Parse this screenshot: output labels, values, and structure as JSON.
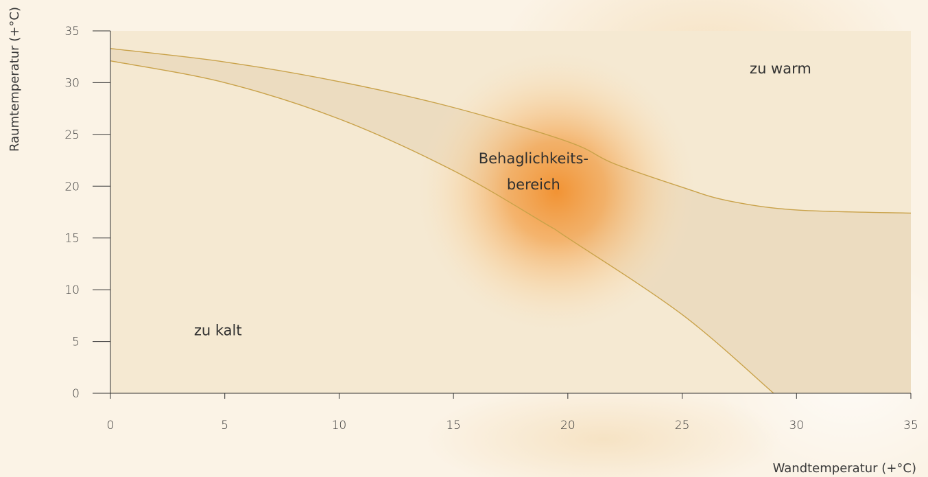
{
  "chart_data": {
    "type": "area",
    "xlabel": "Wandtemperatur (+°C)",
    "ylabel": "Raumtemperatur (+°C)",
    "xlim": [
      0,
      35
    ],
    "ylim": [
      0,
      35
    ],
    "xticks": [
      0,
      5,
      10,
      15,
      20,
      25,
      30,
      35
    ],
    "yticks": [
      0,
      5,
      10,
      15,
      20,
      25,
      30,
      35
    ],
    "grid": false,
    "series": [
      {
        "role": "upper-boundary",
        "x": [
          0,
          5,
          10,
          15,
          20,
          22,
          25,
          27,
          30,
          35
        ],
        "y": [
          33.3,
          32.0,
          30.1,
          27.6,
          24.3,
          22.2,
          19.9,
          18.6,
          17.7,
          17.4
        ]
      },
      {
        "role": "lower-boundary",
        "x": [
          0,
          5,
          10,
          15,
          19,
          20,
          25,
          29
        ],
        "y": [
          32.1,
          30.0,
          26.5,
          21.5,
          16.4,
          15.0,
          7.6,
          0
        ]
      }
    ],
    "annotations": [
      {
        "text": "zu warm",
        "x": 29.3,
        "y": 30.9
      },
      {
        "text": "Behaglichkeits-",
        "x": 18.5,
        "y": 22.2
      },
      {
        "text": "bereich",
        "x": 18.5,
        "y": 19.7
      },
      {
        "text": "zu kalt",
        "x": 4.7,
        "y": 5.6
      }
    ],
    "highlight": {
      "label": "Behaglichkeits-bereich",
      "center_x": 19.5,
      "center_y": 19.5
    },
    "colors": {
      "background": "#fbf3e6",
      "plot_fill": "#f5e9d2",
      "band_fill": "#ecdcc0",
      "boundary_line": "#c9a24a",
      "glow": "#f39b3a",
      "axis": "#333333"
    }
  }
}
